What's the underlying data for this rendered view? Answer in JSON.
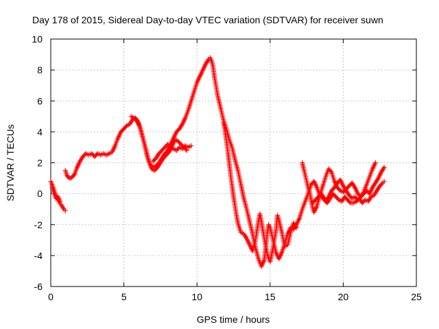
{
  "chart_data": {
    "type": "scatter",
    "title": "Day 178 of 2015, Sidereal Day-to-day VTEC variation (SDTVAR) for receiver suwn",
    "xlabel": "GPS time / hours",
    "ylabel": "SDTVAR / TECUs",
    "xlim": [
      0,
      25
    ],
    "ylim": [
      -6,
      10
    ],
    "x_ticks": [
      "0",
      "5",
      "10",
      "15",
      "20",
      "25"
    ],
    "y_ticks": [
      "-6",
      "-4",
      "-2",
      "0",
      "2",
      "4",
      "6",
      "8",
      "10"
    ],
    "grid": true,
    "legend": "none",
    "marker": "plus",
    "series_color": "#ff0000",
    "series": [
      {
        "points": [
          [
            0.0,
            0.8
          ],
          [
            0.1,
            0.6
          ],
          [
            0.2,
            0.3
          ],
          [
            0.3,
            0.0
          ],
          [
            0.4,
            -0.2
          ],
          [
            0.5,
            -0.4
          ],
          [
            0.6,
            -0.6
          ],
          [
            0.7,
            -0.7
          ],
          [
            0.8,
            -0.85
          ],
          [
            0.9,
            -1.0
          ],
          [
            1.0,
            -1.1
          ]
        ]
      },
      {
        "points": [
          [
            1.0,
            1.5
          ],
          [
            1.1,
            1.2
          ],
          [
            1.2,
            1.05
          ],
          [
            1.35,
            1.0
          ],
          [
            1.5,
            1.1
          ],
          [
            1.65,
            1.3
          ],
          [
            1.8,
            1.7
          ],
          [
            2.0,
            2.1
          ],
          [
            2.2,
            2.4
          ],
          [
            2.4,
            2.6
          ],
          [
            2.6,
            2.5
          ],
          [
            2.8,
            2.6
          ],
          [
            3.0,
            2.4
          ],
          [
            3.2,
            2.6
          ],
          [
            3.4,
            2.5
          ],
          [
            3.6,
            2.6
          ],
          [
            3.8,
            2.5
          ],
          [
            4.0,
            2.6
          ],
          [
            4.2,
            2.7
          ],
          [
            4.4,
            3.1
          ],
          [
            4.6,
            3.6
          ],
          [
            4.8,
            4.0
          ],
          [
            5.0,
            4.2
          ],
          [
            5.2,
            4.4
          ],
          [
            5.4,
            4.5
          ],
          [
            5.6,
            4.8
          ],
          [
            5.8,
            4.9
          ],
          [
            6.0,
            4.6
          ],
          [
            6.2,
            4.0
          ],
          [
            6.4,
            3.2
          ],
          [
            6.6,
            2.4
          ],
          [
            6.8,
            1.9
          ],
          [
            7.0,
            1.7
          ],
          [
            7.2,
            1.8
          ],
          [
            7.4,
            2.0
          ],
          [
            7.6,
            2.3
          ],
          [
            7.8,
            2.6
          ],
          [
            8.0,
            2.8
          ],
          [
            8.2,
            3.2
          ],
          [
            8.4,
            3.6
          ],
          [
            8.6,
            4.0
          ],
          [
            8.8,
            4.2
          ],
          [
            9.0,
            4.5
          ],
          [
            9.2,
            4.9
          ],
          [
            9.4,
            5.4
          ],
          [
            9.6,
            6.0
          ],
          [
            9.8,
            6.6
          ],
          [
            10.0,
            7.2
          ],
          [
            10.2,
            7.6
          ],
          [
            10.4,
            8.0
          ],
          [
            10.6,
            8.4
          ],
          [
            10.8,
            8.7
          ],
          [
            10.9,
            8.8
          ],
          [
            11.0,
            8.6
          ],
          [
            11.1,
            8.2
          ],
          [
            11.2,
            7.5
          ],
          [
            11.3,
            7.0
          ],
          [
            11.4,
            6.4
          ],
          [
            11.5,
            6.0
          ],
          [
            11.6,
            5.6
          ],
          [
            11.8,
            4.8
          ],
          [
            12.0,
            4.2
          ],
          [
            12.2,
            3.5
          ],
          [
            12.4,
            3.0
          ],
          [
            12.6,
            2.2
          ],
          [
            12.8,
            1.5
          ],
          [
            13.0,
            0.6
          ],
          [
            13.2,
            -0.3
          ],
          [
            13.4,
            -1.0
          ],
          [
            13.6,
            -1.8
          ],
          [
            13.8,
            -2.6
          ],
          [
            14.0,
            -3.5
          ],
          [
            14.2,
            -4.2
          ],
          [
            14.4,
            -4.7
          ],
          [
            14.6,
            -4.3
          ],
          [
            14.7,
            -3.5
          ],
          [
            14.8,
            -2.6
          ],
          [
            14.9,
            -2.0
          ],
          [
            15.0,
            -2.2
          ],
          [
            15.2,
            -3.0
          ],
          [
            15.4,
            -3.8
          ],
          [
            15.6,
            -4.2
          ],
          [
            15.8,
            -3.8
          ],
          [
            16.0,
            -3.2
          ],
          [
            16.2,
            -2.6
          ],
          [
            16.4,
            -2.2
          ],
          [
            16.6,
            -2.3
          ],
          [
            16.8,
            -2.0
          ],
          [
            17.0,
            -1.6
          ],
          [
            17.2,
            -1.0
          ],
          [
            17.4,
            -0.5
          ],
          [
            17.6,
            0.0
          ],
          [
            17.8,
            0.6
          ],
          [
            18.0,
            0.8
          ],
          [
            18.2,
            0.4
          ],
          [
            18.4,
            -0.1
          ],
          [
            18.6,
            -0.3
          ],
          [
            18.8,
            -0.5
          ],
          [
            19.0,
            -0.2
          ],
          [
            19.2,
            0.2
          ],
          [
            19.4,
            0.4
          ],
          [
            19.6,
            0.7
          ],
          [
            19.8,
            0.9
          ],
          [
            20.0,
            0.5
          ],
          [
            20.2,
            0.2
          ],
          [
            20.4,
            -0.1
          ],
          [
            20.6,
            -0.3
          ],
          [
            20.8,
            -0.2
          ],
          [
            21.0,
            -0.4
          ],
          [
            21.2,
            -0.2
          ],
          [
            21.4,
            0.1
          ],
          [
            21.6,
            0.6
          ],
          [
            21.8,
            1.1
          ],
          [
            22.0,
            1.6
          ],
          [
            22.2,
            2.0
          ]
        ]
      },
      {
        "points": [
          [
            7.0,
            2.1
          ],
          [
            7.2,
            2.3
          ],
          [
            7.4,
            2.6
          ],
          [
            7.6,
            2.8
          ],
          [
            7.8,
            3.0
          ],
          [
            8.0,
            3.2
          ],
          [
            8.2,
            3.0
          ],
          [
            8.4,
            2.9
          ],
          [
            8.6,
            2.8
          ],
          [
            8.8,
            3.0
          ],
          [
            9.0,
            2.9
          ],
          [
            9.2,
            3.1
          ],
          [
            9.4,
            3.0
          ],
          [
            9.6,
            3.1
          ]
        ]
      },
      {
        "points": [
          [
            5.5,
            5.0
          ],
          [
            5.7,
            4.9
          ],
          [
            5.9,
            4.7
          ],
          [
            6.1,
            4.3
          ],
          [
            6.3,
            3.6
          ],
          [
            6.5,
            2.9
          ],
          [
            6.7,
            2.1
          ],
          [
            6.9,
            1.6
          ],
          [
            7.1,
            1.5
          ],
          [
            7.3,
            1.7
          ],
          [
            7.5,
            2.0
          ],
          [
            7.7,
            2.3
          ],
          [
            7.9,
            2.5
          ],
          [
            8.1,
            2.7
          ],
          [
            8.3,
            3.1
          ],
          [
            8.5,
            3.5
          ],
          [
            8.7,
            3.4
          ],
          [
            8.9,
            3.2
          ],
          [
            9.1,
            3.0
          ],
          [
            9.3,
            2.8
          ]
        ]
      },
      {
        "points": [
          [
            11.8,
            4.6
          ],
          [
            11.9,
            4.2
          ],
          [
            12.0,
            3.5
          ],
          [
            12.1,
            2.8
          ],
          [
            12.2,
            2.0
          ],
          [
            12.3,
            1.2
          ],
          [
            12.4,
            0.5
          ],
          [
            12.5,
            -0.2
          ],
          [
            12.6,
            -0.8
          ],
          [
            12.7,
            -1.4
          ],
          [
            12.8,
            -1.9
          ],
          [
            12.9,
            -2.2
          ],
          [
            13.0,
            -2.5
          ],
          [
            13.2,
            -2.6
          ],
          [
            13.4,
            -2.9
          ],
          [
            13.6,
            -3.3
          ],
          [
            13.8,
            -3.7
          ],
          [
            14.0,
            -3.0
          ],
          [
            14.2,
            -1.8
          ],
          [
            14.3,
            -1.3
          ],
          [
            14.4,
            -1.8
          ],
          [
            14.6,
            -2.9
          ],
          [
            14.8,
            -3.9
          ],
          [
            15.0,
            -4.4
          ],
          [
            15.2,
            -3.5
          ],
          [
            15.4,
            -2.4
          ],
          [
            15.5,
            -1.4
          ],
          [
            15.6,
            -1.7
          ],
          [
            15.8,
            -2.5
          ],
          [
            16.0,
            -3.4
          ],
          [
            16.2,
            -3.3
          ],
          [
            16.4,
            -2.5
          ],
          [
            16.6,
            -1.9
          ],
          [
            16.8,
            -2.2
          ]
        ]
      },
      {
        "points": [
          [
            17.2,
            2.0
          ],
          [
            17.3,
            1.6
          ],
          [
            17.4,
            1.2
          ],
          [
            17.5,
            0.8
          ],
          [
            17.6,
            0.4
          ],
          [
            17.7,
            0.1
          ],
          [
            17.8,
            -0.4
          ],
          [
            17.9,
            -0.9
          ],
          [
            18.0,
            -1.2
          ],
          [
            18.2,
            -0.8
          ],
          [
            18.4,
            -0.1
          ],
          [
            18.6,
            0.5
          ],
          [
            18.8,
            1.1
          ],
          [
            19.0,
            1.6
          ],
          [
            19.2,
            1.4
          ],
          [
            19.4,
            0.8
          ],
          [
            19.6,
            0.4
          ],
          [
            19.8,
            0.2
          ],
          [
            20.0,
            0.1
          ],
          [
            20.2,
            0.3
          ],
          [
            20.4,
            0.5
          ],
          [
            20.6,
            0.7
          ],
          [
            20.8,
            0.4
          ],
          [
            21.0,
            0.0
          ],
          [
            21.2,
            -0.2
          ],
          [
            21.4,
            0.0
          ],
          [
            21.6,
            0.2
          ],
          [
            21.8,
            0.0
          ],
          [
            22.0,
            0.4
          ],
          [
            22.2,
            0.7
          ],
          [
            22.4,
            1.0
          ],
          [
            22.6,
            1.4
          ],
          [
            22.8,
            1.7
          ]
        ]
      },
      {
        "points": [
          [
            17.9,
            -0.6
          ],
          [
            18.1,
            -0.4
          ],
          [
            18.3,
            -0.2
          ],
          [
            18.5,
            0.0
          ],
          [
            18.7,
            -0.3
          ],
          [
            18.9,
            -0.6
          ],
          [
            19.1,
            -0.3
          ],
          [
            19.3,
            0.0
          ],
          [
            19.5,
            -0.2
          ],
          [
            19.7,
            -0.4
          ],
          [
            19.9,
            -0.5
          ],
          [
            20.1,
            -0.2
          ],
          [
            20.3,
            -0.4
          ],
          [
            20.5,
            -0.6
          ],
          [
            20.7,
            -0.6
          ],
          [
            20.9,
            -0.5
          ],
          [
            21.1,
            -0.3
          ],
          [
            21.3,
            -0.6
          ],
          [
            21.5,
            -0.4
          ],
          [
            21.7,
            -0.5
          ],
          [
            21.9,
            -0.2
          ],
          [
            22.1,
            -0.1
          ],
          [
            22.3,
            0.2
          ],
          [
            22.5,
            0.5
          ],
          [
            22.7,
            0.7
          ],
          [
            22.8,
            0.8
          ]
        ]
      },
      {
        "points": [
          [
            0.1,
            0.4
          ],
          [
            0.2,
            0.1
          ],
          [
            0.35,
            -0.3
          ],
          [
            0.5,
            -0.2
          ],
          [
            0.65,
            -0.5
          ]
        ]
      }
    ]
  }
}
